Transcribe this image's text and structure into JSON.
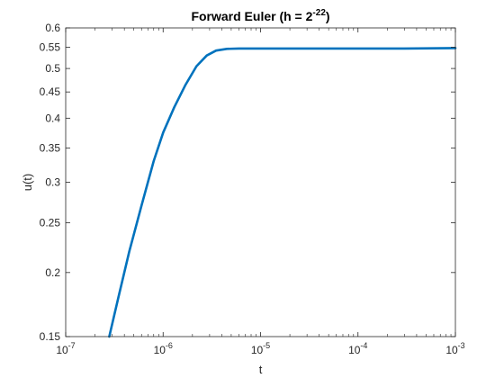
{
  "chart_data": {
    "type": "line",
    "title": "Forward Euler (h = 2",
    "title_exponent": "-22",
    "title_suffix": ")",
    "xlabel": "t",
    "ylabel": "u(t)",
    "xscale": "log",
    "yscale": "log",
    "xlim": [
      1e-07,
      0.001
    ],
    "ylim": [
      0.15,
      0.6
    ],
    "x_ticks": [
      {
        "value": 1e-07,
        "base": "10",
        "exp": "-7"
      },
      {
        "value": 1e-06,
        "base": "10",
        "exp": "-6"
      },
      {
        "value": 1e-05,
        "base": "10",
        "exp": "-5"
      },
      {
        "value": 0.0001,
        "base": "10",
        "exp": "-4"
      },
      {
        "value": 0.001,
        "base": "10",
        "exp": "-3"
      }
    ],
    "y_ticks": [
      {
        "value": 0.15,
        "label": "0.15"
      },
      {
        "value": 0.2,
        "label": "0.2"
      },
      {
        "value": 0.25,
        "label": "0.25"
      },
      {
        "value": 0.3,
        "label": "0.3"
      },
      {
        "value": 0.35,
        "label": "0.35"
      },
      {
        "value": 0.4,
        "label": "0.4"
      },
      {
        "value": 0.45,
        "label": "0.45"
      },
      {
        "value": 0.5,
        "label": "0.5"
      },
      {
        "value": 0.55,
        "label": "0.55"
      },
      {
        "value": 0.6,
        "label": "0.6"
      }
    ],
    "grid": false,
    "series": [
      {
        "color": "#0072BD",
        "x": [
          2.8e-07,
          3.5e-07,
          4.5e-07,
          6e-07,
          8e-07,
          1e-06,
          1.3e-06,
          1.7e-06,
          2.2e-06,
          2.8e-06,
          3.5e-06,
          4.5e-06,
          6e-06,
          1e-05,
          3e-05,
          0.0001,
          0.0003,
          0.001
        ],
        "y": [
          0.15,
          0.18,
          0.22,
          0.27,
          0.33,
          0.375,
          0.42,
          0.465,
          0.505,
          0.53,
          0.542,
          0.546,
          0.547,
          0.547,
          0.547,
          0.547,
          0.547,
          0.548
        ]
      }
    ]
  }
}
